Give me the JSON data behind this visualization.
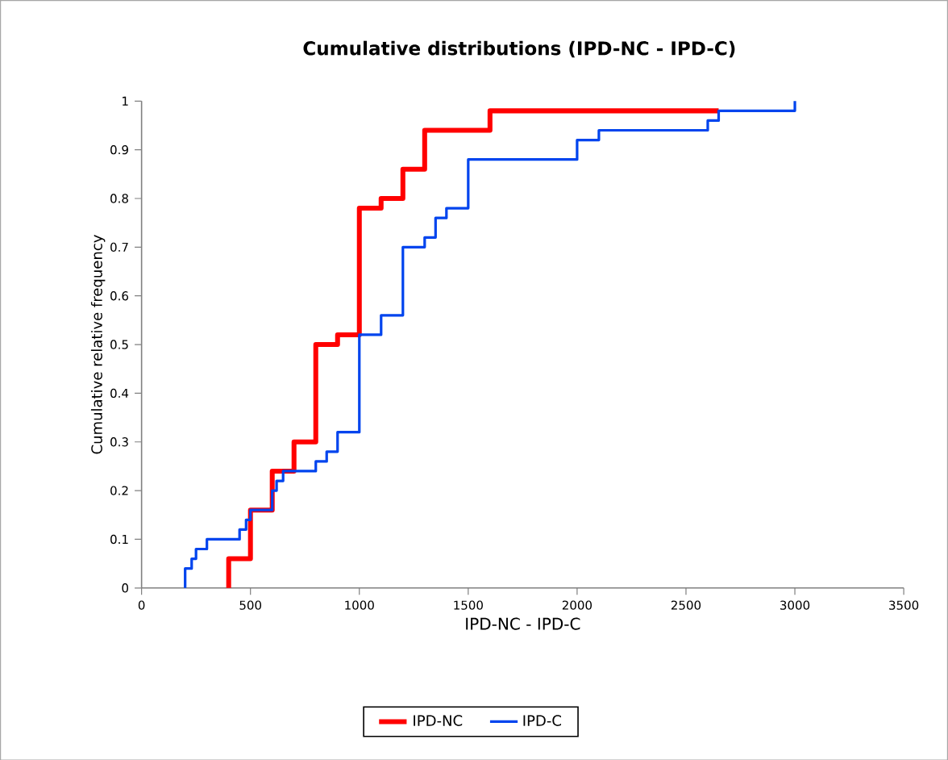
{
  "chart_data": {
    "type": "step",
    "title": "Cumulative distributions (IPD-NC - IPD-C)",
    "xlabel": "IPD-NC - IPD-C",
    "ylabel": "Cumulative relative frequency",
    "xlim": [
      0,
      3500
    ],
    "xticks": [
      0,
      500,
      1000,
      1500,
      2000,
      2500,
      3000,
      3500
    ],
    "ylim": [
      0,
      1
    ],
    "yticks": [
      0,
      0.1,
      0.2,
      0.3,
      0.4,
      0.5,
      0.6,
      0.7,
      0.8,
      0.9,
      1
    ],
    "legend": "bottom",
    "grid": false,
    "marker": "none",
    "line_style": "solid",
    "series": [
      {
        "name": "IPD-NC",
        "color": "#ff0000",
        "x": [
          400,
          400,
          500,
          600,
          700,
          800,
          900,
          1000,
          1100,
          1200,
          1300,
          1600,
          2650
        ],
        "values": [
          0,
          0.06,
          0.16,
          0.24,
          0.3,
          0.5,
          0.52,
          0.78,
          0.8,
          0.86,
          0.94,
          0.98,
          0.98
        ]
      },
      {
        "name": "IPD-C",
        "color": "#0044ee",
        "x": [
          200,
          200,
          230,
          250,
          300,
          450,
          480,
          500,
          600,
          620,
          650,
          800,
          850,
          900,
          1000,
          1100,
          1200,
          1300,
          1350,
          1400,
          1500,
          2000,
          2100,
          2600,
          2650,
          3000
        ],
        "values": [
          0,
          0.04,
          0.06,
          0.08,
          0.1,
          0.12,
          0.14,
          0.16,
          0.2,
          0.22,
          0.24,
          0.26,
          0.28,
          0.32,
          0.52,
          0.56,
          0.7,
          0.72,
          0.76,
          0.78,
          0.88,
          0.92,
          0.94,
          0.96,
          0.98,
          1.0
        ]
      }
    ]
  }
}
